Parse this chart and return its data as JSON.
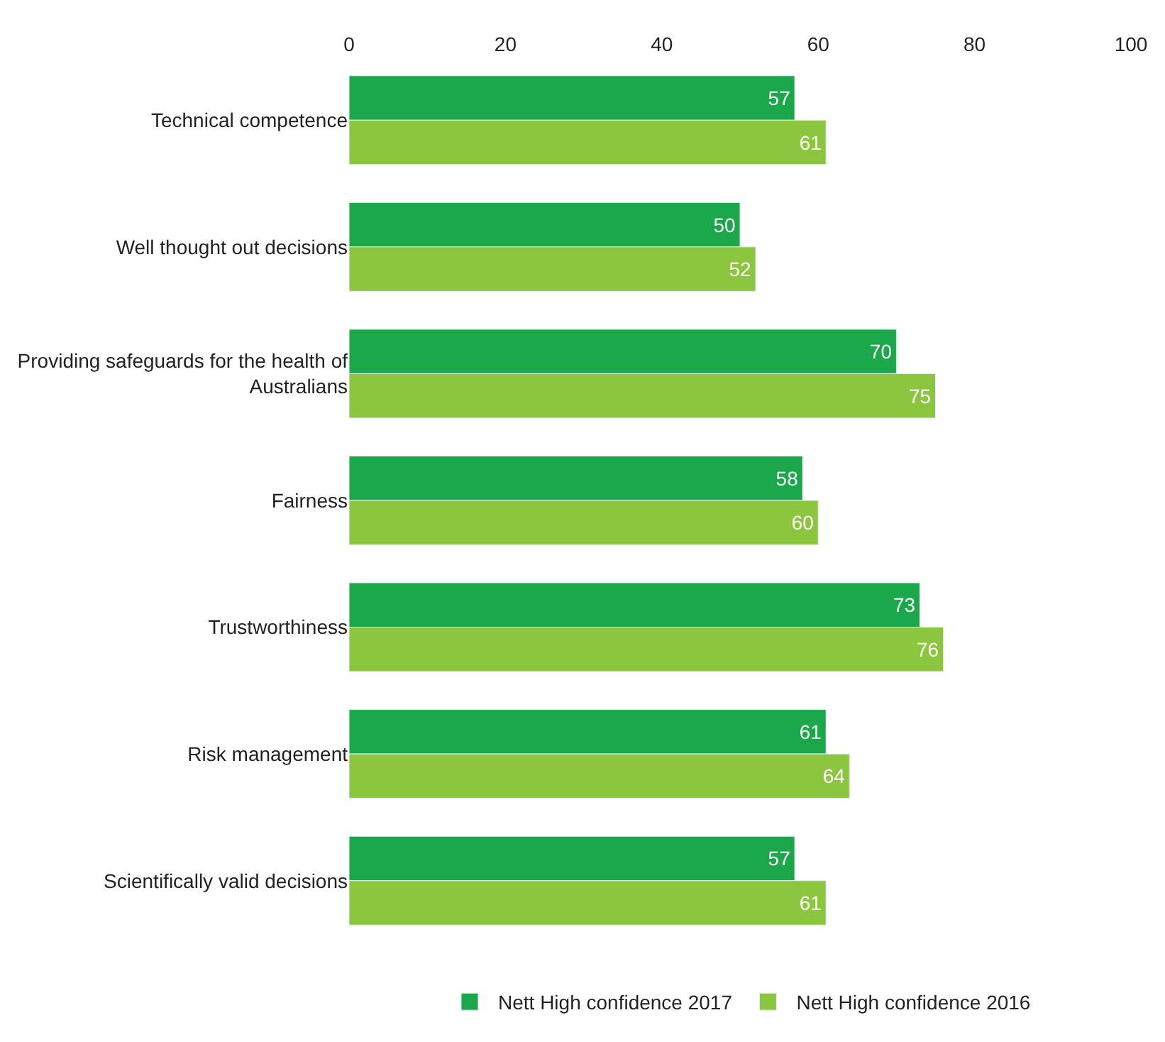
{
  "chart_data": {
    "type": "bar",
    "orientation": "horizontal",
    "categories": [
      "Technical competence",
      "Well thought out decisions",
      "Providing safeguards for the health of Australians",
      "Fairness",
      "Trustworthiness",
      "Risk management",
      "Scientifically valid decisions"
    ],
    "series": [
      {
        "name": "Nett High confidence 2017",
        "color": "#1aa84b",
        "values": [
          57,
          50,
          70,
          58,
          73,
          61,
          57
        ]
      },
      {
        "name": "Nett High confidence 2016",
        "color": "#8cc63f",
        "values": [
          61,
          52,
          75,
          60,
          76,
          64,
          61
        ]
      }
    ],
    "xlim": [
      0,
      100
    ],
    "xticks": [
      0,
      20,
      40,
      60,
      80,
      100
    ],
    "data_labels": true,
    "legend": "bottom"
  }
}
